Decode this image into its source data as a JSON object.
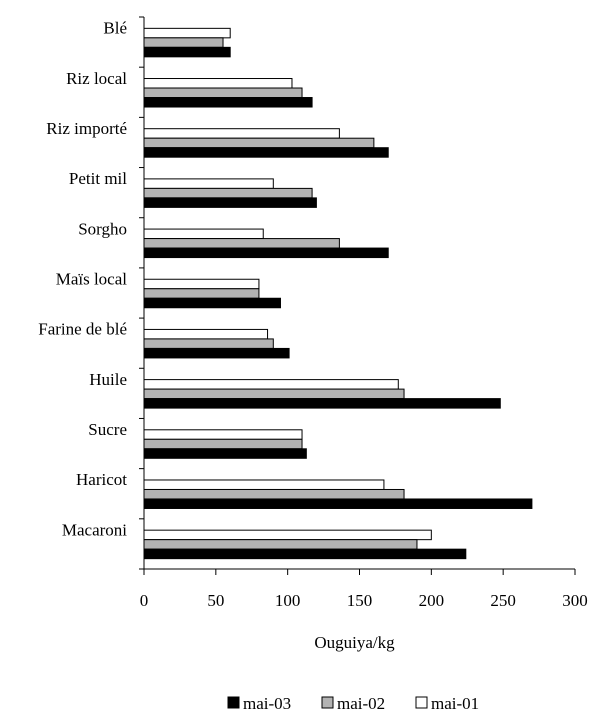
{
  "chart_data": {
    "type": "bar",
    "orientation": "horizontal",
    "categories": [
      "Blé",
      "Riz local",
      "Riz importé",
      "Petit mil",
      "Sorgho",
      "Maïs local",
      "Farine de blé",
      "Huile",
      "Sucre",
      "Haricot",
      "Macaroni"
    ],
    "series": [
      {
        "name": "mai-03",
        "color": "#000000",
        "values": [
          60,
          117,
          170,
          120,
          170,
          95,
          101,
          248,
          113,
          270,
          224
        ]
      },
      {
        "name": "mai-02",
        "color": "#b3b3b3",
        "values": [
          55,
          110,
          160,
          117,
          136,
          80,
          90,
          181,
          110,
          181,
          190
        ]
      },
      {
        "name": "mai-01",
        "color": "#ffffff",
        "values": [
          60,
          103,
          136,
          90,
          83,
          80,
          86,
          177,
          110,
          167,
          200
        ]
      }
    ],
    "xlabel": "Ouguiya/kg",
    "ylabel": "",
    "xlim": [
      0,
      300
    ],
    "xticks": [
      "0",
      "50",
      "100",
      "150",
      "200",
      "250",
      "300"
    ],
    "grid": false,
    "legend_position": "bottom"
  }
}
